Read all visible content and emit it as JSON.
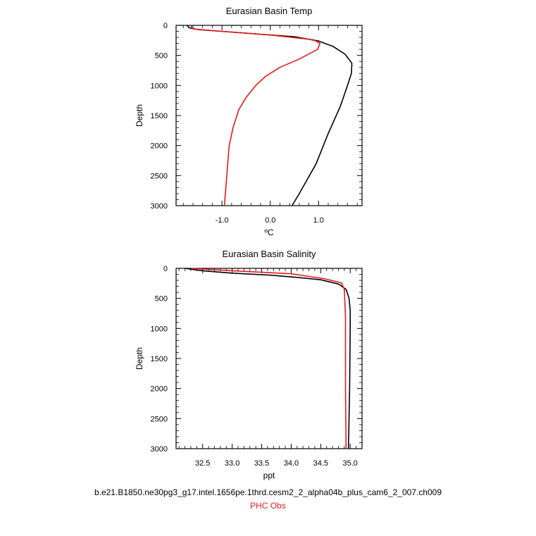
{
  "chart_data": [
    {
      "type": "line",
      "title": "Eurasian Basin Temp",
      "xlabel": "ºC",
      "ylabel": "Depth",
      "xlim": [
        -1.95,
        1.9
      ],
      "ylim": [
        0,
        3000
      ],
      "y_inverted": true,
      "x_ticks": [
        -1.0,
        0.0,
        1.0
      ],
      "x_tick_labels": [
        "-1.0",
        "0.0",
        "1.0"
      ],
      "y_ticks": [
        0,
        500,
        1000,
        1500,
        2000,
        2500,
        3000
      ],
      "y_tick_labels": [
        "0",
        "500",
        "1000",
        "1500",
        "2000",
        "2500",
        "3000"
      ],
      "series": [
        {
          "color": "#000000",
          "points": [
            [
              -1.72,
              0
            ],
            [
              -1.68,
              40
            ],
            [
              -1.5,
              70
            ],
            [
              -0.5,
              130
            ],
            [
              0.5,
              190
            ],
            [
              1.0,
              260
            ],
            [
              1.3,
              350
            ],
            [
              1.55,
              480
            ],
            [
              1.69,
              630
            ],
            [
              1.68,
              800
            ],
            [
              1.6,
              1000
            ],
            [
              1.45,
              1350
            ],
            [
              1.2,
              1800
            ],
            [
              0.95,
              2300
            ],
            [
              0.6,
              2800
            ],
            [
              0.45,
              3000
            ]
          ]
        },
        {
          "color": "#e41a1c",
          "points": [
            [
              -1.65,
              0
            ],
            [
              -1.6,
              60
            ],
            [
              -1.0,
              100
            ],
            [
              0.0,
              160
            ],
            [
              0.9,
              240
            ],
            [
              1.03,
              300
            ],
            [
              0.98,
              400
            ],
            [
              0.6,
              560
            ],
            [
              0.2,
              700
            ],
            [
              -0.1,
              850
            ],
            [
              -0.3,
              1000
            ],
            [
              -0.5,
              1200
            ],
            [
              -0.65,
              1400
            ],
            [
              -0.77,
              1700
            ],
            [
              -0.85,
              2000
            ],
            [
              -0.9,
              2500
            ],
            [
              -0.95,
              3000
            ]
          ]
        }
      ]
    },
    {
      "type": "line",
      "title": "Eurasian Basin Salinity",
      "xlabel": "ppt",
      "ylabel": "Depth",
      "xlim": [
        32.05,
        35.2
      ],
      "ylim": [
        0,
        3000
      ],
      "y_inverted": true,
      "x_ticks": [
        32.5,
        33.0,
        33.5,
        34.0,
        34.5,
        35.0
      ],
      "x_tick_labels": [
        "32.5",
        "33.0",
        "33.5",
        "34.0",
        "34.5",
        "35.0"
      ],
      "y_ticks": [
        0,
        500,
        1000,
        1500,
        2000,
        2500,
        3000
      ],
      "y_tick_labels": [
        "0",
        "500",
        "1000",
        "1500",
        "2000",
        "2500",
        "3000"
      ],
      "series": [
        {
          "color": "#000000",
          "points": [
            [
              32.2,
              0
            ],
            [
              32.5,
              40
            ],
            [
              33.0,
              80
            ],
            [
              33.6,
              110
            ],
            [
              34.1,
              150
            ],
            [
              34.5,
              190
            ],
            [
              34.8,
              260
            ],
            [
              34.93,
              350
            ],
            [
              34.98,
              500
            ],
            [
              35.0,
              700
            ],
            [
              35.0,
              1000
            ],
            [
              34.99,
              2000
            ],
            [
              34.97,
              3000
            ]
          ]
        },
        {
          "color": "#e41a1c",
          "points": [
            [
              32.3,
              0
            ],
            [
              33.0,
              40
            ],
            [
              34.0,
              90
            ],
            [
              34.55,
              170
            ],
            [
              34.85,
              240
            ],
            [
              34.9,
              350
            ],
            [
              34.92,
              800
            ],
            [
              34.92,
              2000
            ],
            [
              34.93,
              3000
            ]
          ]
        }
      ]
    }
  ],
  "legend": {
    "model_label": "b.e21.B1850.ne30pg3_g17.intel.1656pe.1thrd.cesm2_2_alpha04b_plus_cam6_2_007.ch009",
    "obs_label": "PHC Obs",
    "obs_color": "#e41a1c"
  }
}
